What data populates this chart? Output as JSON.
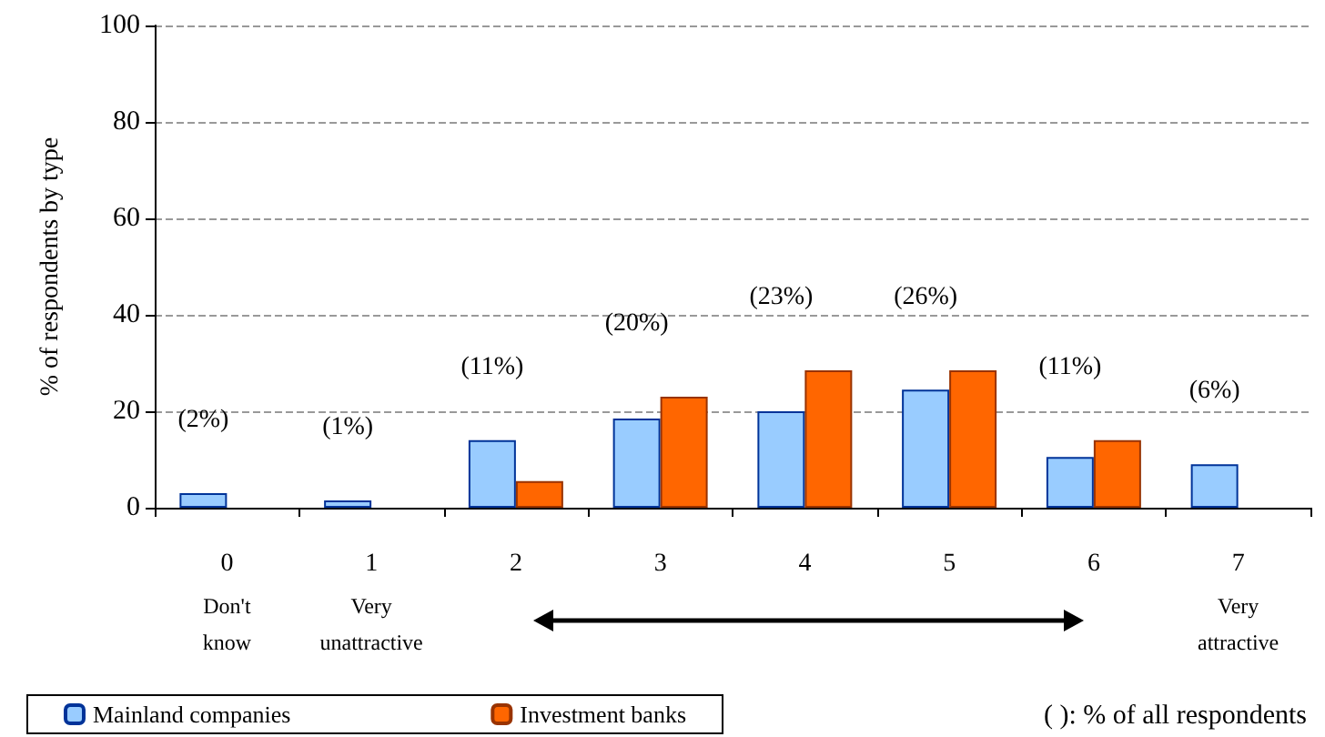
{
  "chart_data": {
    "type": "bar",
    "ylabel": "% of respondents by type",
    "categories": [
      "0\nDon't\nknow",
      "1\nVery\nunattractive",
      "2",
      "3",
      "4",
      "5",
      "6",
      "7\nVery\nattractive"
    ],
    "series": [
      {
        "name": "Mainland companies",
        "color": "#99ccff",
        "values": [
          3,
          1.5,
          14,
          18.5,
          20,
          24.5,
          10.5,
          9
        ]
      },
      {
        "name": "Investment banks",
        "color": "#ff6600",
        "values": [
          null,
          null,
          5.5,
          23,
          28.5,
          28.5,
          14,
          null
        ]
      }
    ],
    "ylim": [
      0,
      100
    ],
    "yticks": [
      0,
      20,
      40,
      60,
      80,
      100
    ],
    "grid": "y",
    "legend": "bottom left",
    "annotations": [
      "(2%)",
      "(1%)",
      "(11%)",
      "(20%)",
      "(23%)",
      "(26%)",
      "(11%)",
      "(6%)",
      "( ): % of all respondents"
    ]
  }
}
